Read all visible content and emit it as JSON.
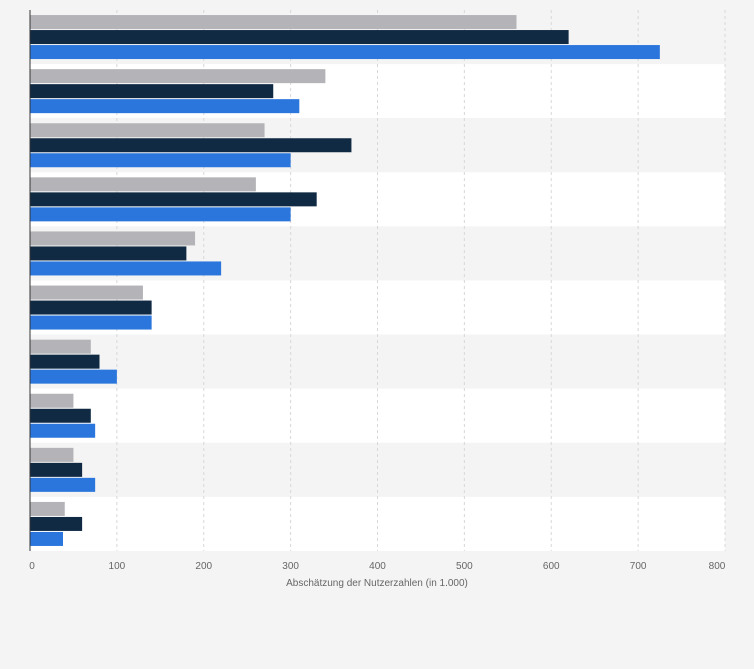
{
  "chart_data": {
    "type": "bar",
    "orientation": "horizontal",
    "title": "",
    "xlabel": "Abschätzung der Nutzerzahlen (in 1.000)",
    "ylabel": "",
    "xlim": [
      0,
      800
    ],
    "xticks": [
      "0",
      "100",
      "200",
      "300",
      "400",
      "500",
      "600",
      "700",
      "800"
    ],
    "grid": true,
    "legend": "none",
    "categories": [
      "",
      "",
      "",
      "",
      "",
      "",
      "",
      "",
      "",
      ""
    ],
    "series": [
      {
        "color": "#b4b4b8",
        "values": [
          560,
          340,
          270,
          260,
          190,
          130,
          70,
          50,
          50,
          40
        ]
      },
      {
        "color": "#102a43",
        "values": [
          620,
          280,
          370,
          330,
          180,
          140,
          80,
          70,
          60,
          60
        ]
      },
      {
        "color": "#2a76dc",
        "values": [
          725,
          310,
          300,
          300,
          220,
          140,
          100,
          75,
          75,
          38
        ]
      }
    ],
    "colors": {
      "band_light": "#ffffff",
      "band_dark": "#f4f4f4",
      "grid": "#d8d8d8",
      "axis": "#333333",
      "text": "#666666"
    }
  }
}
